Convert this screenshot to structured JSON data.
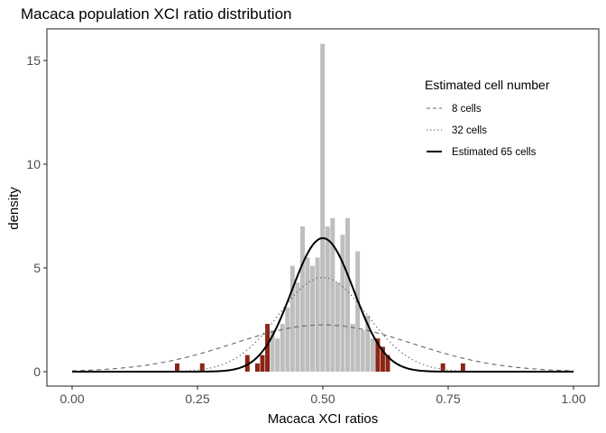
{
  "chart_data": {
    "type": "histogram",
    "title": "Macaca population XCI ratio distribution",
    "xlabel": "Macaca XCI ratios",
    "ylabel": "density",
    "xlim": [
      0,
      1
    ],
    "ylim": [
      0,
      16
    ],
    "x_ticks": [
      0,
      0.25,
      0.5,
      0.75,
      1
    ],
    "x_tick_labels": [
      "0.00",
      "0.25",
      "0.50",
      "0.75",
      "1.00"
    ],
    "y_ticks": [
      0,
      5,
      10,
      15
    ],
    "y_tick_labels": [
      "0",
      "5",
      "10",
      "15"
    ],
    "grid": false,
    "legend": {
      "title": "Estimated cell number",
      "position": "top-right",
      "entries": [
        {
          "label": "8 cells",
          "linetype": "dashed",
          "color": "#666666"
        },
        {
          "label": "32 cells",
          "linetype": "dotted",
          "color": "#666666"
        },
        {
          "label": "Estimated 65 cells",
          "linetype": "solid",
          "color": "#000000"
        }
      ]
    },
    "colors": {
      "inner_bins": "#bebebe",
      "outer_bins": "#8b2516"
    },
    "bin_width": 0.01,
    "bins": [
      {
        "x": 0.21,
        "density": 0.4,
        "group": "outer"
      },
      {
        "x": 0.26,
        "density": 0.4,
        "group": "outer"
      },
      {
        "x": 0.35,
        "density": 0.8,
        "group": "outer"
      },
      {
        "x": 0.37,
        "density": 0.4,
        "group": "outer"
      },
      {
        "x": 0.38,
        "density": 0.8,
        "group": "outer"
      },
      {
        "x": 0.39,
        "density": 2.3,
        "group": "outer"
      },
      {
        "x": 0.4,
        "density": 2.0,
        "group": "inner"
      },
      {
        "x": 0.41,
        "density": 1.6,
        "group": "inner"
      },
      {
        "x": 0.42,
        "density": 2.3,
        "group": "inner"
      },
      {
        "x": 0.43,
        "density": 3.1,
        "group": "inner"
      },
      {
        "x": 0.44,
        "density": 5.1,
        "group": "inner"
      },
      {
        "x": 0.45,
        "density": 4.3,
        "group": "inner"
      },
      {
        "x": 0.46,
        "density": 7.0,
        "group": "inner"
      },
      {
        "x": 0.47,
        "density": 5.5,
        "group": "inner"
      },
      {
        "x": 0.48,
        "density": 5.1,
        "group": "inner"
      },
      {
        "x": 0.49,
        "density": 5.5,
        "group": "inner"
      },
      {
        "x": 0.5,
        "density": 15.8,
        "group": "inner"
      },
      {
        "x": 0.51,
        "density": 7.0,
        "group": "inner"
      },
      {
        "x": 0.52,
        "density": 7.4,
        "group": "inner"
      },
      {
        "x": 0.53,
        "density": 4.3,
        "group": "inner"
      },
      {
        "x": 0.54,
        "density": 6.6,
        "group": "inner"
      },
      {
        "x": 0.55,
        "density": 7.4,
        "group": "inner"
      },
      {
        "x": 0.56,
        "density": 2.3,
        "group": "inner"
      },
      {
        "x": 0.57,
        "density": 5.8,
        "group": "inner"
      },
      {
        "x": 0.58,
        "density": 2.0,
        "group": "inner"
      },
      {
        "x": 0.59,
        "density": 2.7,
        "group": "inner"
      },
      {
        "x": 0.6,
        "density": 1.6,
        "group": "inner"
      },
      {
        "x": 0.61,
        "density": 1.6,
        "group": "outer"
      },
      {
        "x": 0.62,
        "density": 1.2,
        "group": "outer"
      },
      {
        "x": 0.63,
        "density": 0.8,
        "group": "outer"
      },
      {
        "x": 0.74,
        "density": 0.4,
        "group": "outer"
      },
      {
        "x": 0.78,
        "density": 0.4,
        "group": "outer"
      }
    ],
    "series": [
      {
        "name": "8 cells",
        "linetype": "dashed",
        "mean": 0.5,
        "sd": 0.177
      },
      {
        "name": "32 cells",
        "linetype": "dotted",
        "mean": 0.5,
        "sd": 0.088
      },
      {
        "name": "Estimated 65 cells",
        "linetype": "solid",
        "mean": 0.5,
        "sd": 0.062
      }
    ]
  }
}
